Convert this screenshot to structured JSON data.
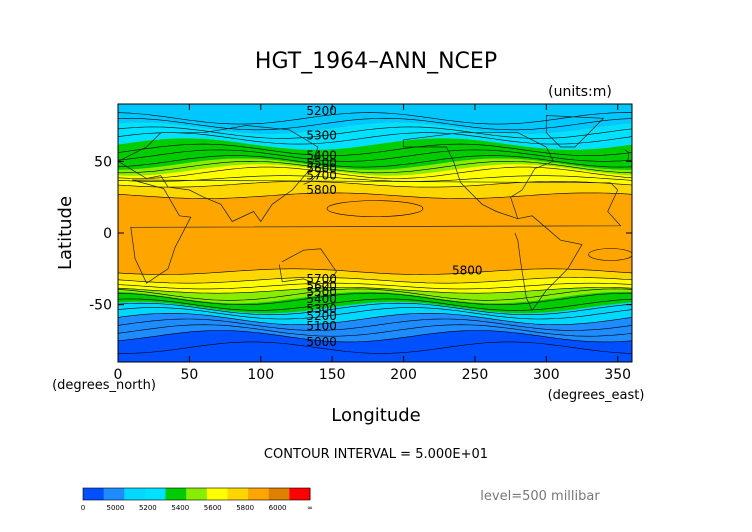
{
  "chart_data": {
    "type": "heatmap",
    "title": "HGT_1964–ANN_NCEP",
    "units": "(units:m)",
    "xlabel": "Longitude",
    "ylabel": "Latitude",
    "x_unit": "(degrees_east)",
    "y_unit": "(degrees_north)",
    "xlim": [
      0,
      360
    ],
    "ylim": [
      -90,
      90
    ],
    "x_ticks": [
      0,
      50,
      100,
      150,
      200,
      250,
      300,
      350
    ],
    "y_ticks": [
      -50,
      0,
      50
    ],
    "contour_interval_text": "CONTOUR INTERVAL = 5.000E+01",
    "level_text": "level=500 millibar",
    "contour_labels": [
      {
        "text": "5200",
        "lon": 130,
        "lat": 85
      },
      {
        "text": "5300",
        "lon": 130,
        "lat": 68
      },
      {
        "text": "5400",
        "lon": 130,
        "lat": 54
      },
      {
        "text": "5500",
        "lon": 130,
        "lat": 49
      },
      {
        "text": "5600",
        "lon": 130,
        "lat": 45
      },
      {
        "text": "5700",
        "lon": 130,
        "lat": 40
      },
      {
        "text": "5800",
        "lon": 130,
        "lat": 30
      },
      {
        "text": "5800",
        "lon": 232,
        "lat": -26
      },
      {
        "text": "5700",
        "lon": 130,
        "lat": -32
      },
      {
        "text": "5600",
        "lon": 130,
        "lat": -37
      },
      {
        "text": "5500",
        "lon": 130,
        "lat": -41
      },
      {
        "text": "5400",
        "lon": 130,
        "lat": -46
      },
      {
        "text": "5300",
        "lon": 130,
        "lat": -53
      },
      {
        "text": "5200",
        "lon": 130,
        "lat": -58
      },
      {
        "text": "5100",
        "lon": 130,
        "lat": -65
      },
      {
        "text": "5000",
        "lon": 130,
        "lat": -76
      }
    ],
    "bands_north": [
      {
        "lat_from": 90,
        "lat_to": 73,
        "color": "#00c8ff"
      },
      {
        "lat_from": 73,
        "lat_to": 62,
        "color": "#00e0ff"
      },
      {
        "lat_from": 62,
        "lat_to": 48,
        "color": "#00cc00"
      },
      {
        "lat_from": 48,
        "lat_to": 44,
        "color": "#88ee00"
      },
      {
        "lat_from": 44,
        "lat_to": 34,
        "color": "#ffff00"
      },
      {
        "lat_from": 34,
        "lat_to": 26,
        "color": "#ffd700"
      }
    ],
    "bands_south": [
      {
        "lat_from": -90,
        "lat_to": -72,
        "color": "#0050ff"
      },
      {
        "lat_from": -72,
        "lat_to": -60,
        "color": "#1e8cff"
      },
      {
        "lat_from": -60,
        "lat_to": -52,
        "color": "#00d8ff"
      },
      {
        "lat_from": -52,
        "lat_to": -45,
        "color": "#00cc00"
      },
      {
        "lat_from": -45,
        "lat_to": -40,
        "color": "#88ee00"
      },
      {
        "lat_from": -40,
        "lat_to": -33,
        "color": "#ffff00"
      },
      {
        "lat_from": -33,
        "lat_to": -27,
        "color": "#ffd700"
      }
    ],
    "equatorial_color": "#ffa500",
    "colorbar": {
      "colors": [
        "#0050ff",
        "#1e8cff",
        "#00d8ff",
        "#00e0ff",
        "#00cc00",
        "#88ee00",
        "#ffff00",
        "#ffd700",
        "#ffa500",
        "#e08000",
        "#ff0000"
      ],
      "labels": [
        "0",
        "5000",
        "5200",
        "5400",
        "5600",
        "5800",
        "6000",
        "∞"
      ]
    }
  }
}
